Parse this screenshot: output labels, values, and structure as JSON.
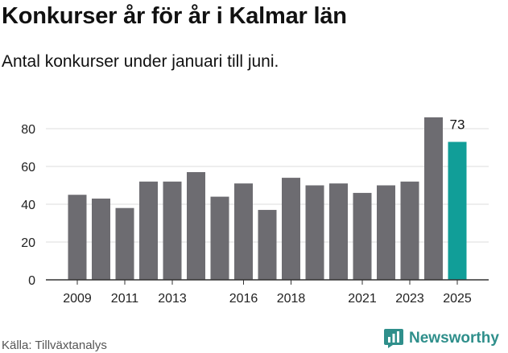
{
  "title": "Konkurser år för år i Kalmar län",
  "subtitle": "Antal konkurser under januari till juni.",
  "source": "Källa: Tillväxtanalys",
  "brand": "Newsworthy",
  "colors": {
    "bar": "#6d6c71",
    "highlight": "#119e98",
    "grid": "#dddddd",
    "axis": "#333333",
    "brand": "#2f8f8b"
  },
  "icons": {
    "brand_logo": "bar-chart-logo-icon"
  },
  "chart_data": {
    "type": "bar",
    "title": "Konkurser år för år i Kalmar län",
    "subtitle": "Antal konkurser under januari till juni.",
    "xlabel": "",
    "ylabel": "",
    "categories": [
      "2009",
      "2010",
      "2011",
      "2012",
      "2013",
      "2014",
      "2015",
      "2016",
      "2017",
      "2018",
      "2019",
      "2020",
      "2021",
      "2022",
      "2023",
      "2024",
      "2025"
    ],
    "values": [
      45,
      43,
      38,
      52,
      52,
      57,
      44,
      51,
      37,
      54,
      50,
      51,
      46,
      50,
      52,
      86,
      73
    ],
    "highlight_category": "2025",
    "data_labels": [
      {
        "category": "2025",
        "text": "73"
      }
    ],
    "x_tick_labels": [
      "2009",
      "2011",
      "2013",
      "2016",
      "2018",
      "2021",
      "2023",
      "2025"
    ],
    "y_ticks": [
      0,
      20,
      40,
      60,
      80
    ],
    "ylim": [
      0,
      90
    ],
    "grid": true,
    "legend": "none"
  }
}
